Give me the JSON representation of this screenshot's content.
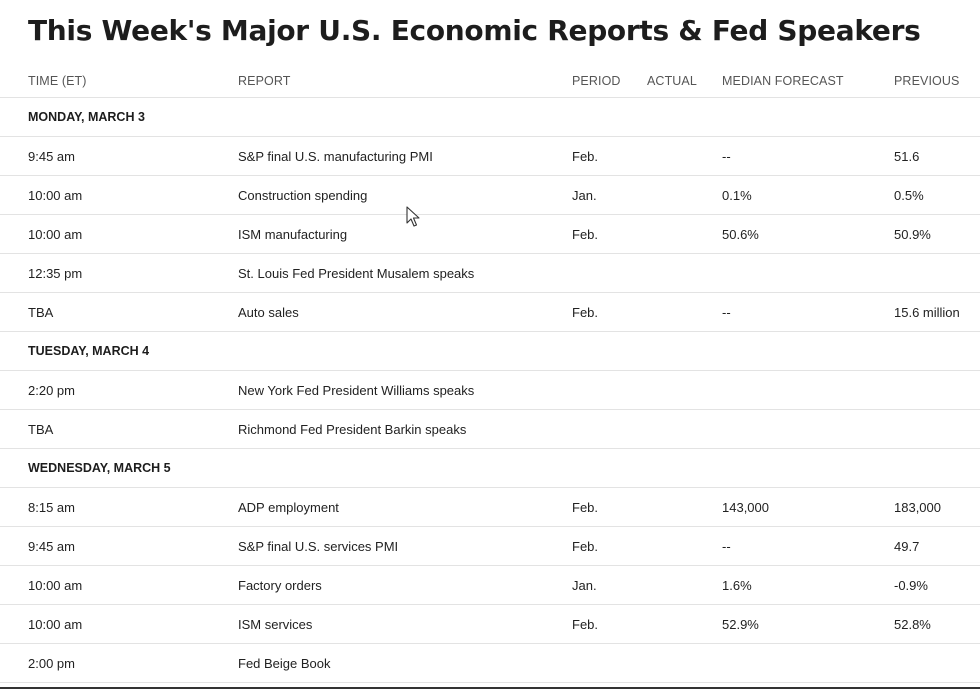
{
  "title": "This Week's Major U.S. Economic Reports & Fed Speakers",
  "columns": {
    "time": "TIME (ET)",
    "report": "REPORT",
    "period": "PERIOD",
    "actual": "ACTUAL",
    "forecast": "MEDIAN FORECAST",
    "previous": "PREVIOUS"
  },
  "days": [
    {
      "label": "MONDAY, MARCH 3",
      "rows": [
        {
          "time": "9:45 am",
          "report": "S&P final U.S. manufacturing PMI",
          "period": "Feb.",
          "actual": "",
          "forecast": "--",
          "previous": "51.6"
        },
        {
          "time": "10:00 am",
          "report": "Construction spending",
          "period": "Jan.",
          "actual": "",
          "forecast": "0.1%",
          "previous": "0.5%"
        },
        {
          "time": "10:00 am",
          "report": "ISM manufacturing",
          "period": "Feb.",
          "actual": "",
          "forecast": "50.6%",
          "previous": "50.9%"
        },
        {
          "time": "12:35 pm",
          "report": "St. Louis Fed President Musalem speaks",
          "period": "",
          "actual": "",
          "forecast": "",
          "previous": ""
        },
        {
          "time": "TBA",
          "report": "Auto sales",
          "period": "Feb.",
          "actual": "",
          "forecast": "--",
          "previous": "15.6 million"
        }
      ]
    },
    {
      "label": "TUESDAY, MARCH 4",
      "rows": [
        {
          "time": "2:20 pm",
          "report": "New York Fed President Williams speaks",
          "period": "",
          "actual": "",
          "forecast": "",
          "previous": ""
        },
        {
          "time": "TBA",
          "report": "Richmond Fed President Barkin speaks",
          "period": "",
          "actual": "",
          "forecast": "",
          "previous": ""
        }
      ]
    },
    {
      "label": "WEDNESDAY, MARCH 5",
      "rows": [
        {
          "time": "8:15 am",
          "report": "ADP employment",
          "period": "Feb.",
          "actual": "",
          "forecast": "143,000",
          "previous": "183,000"
        },
        {
          "time": "9:45 am",
          "report": "S&P final U.S. services PMI",
          "period": "Feb.",
          "actual": "",
          "forecast": "--",
          "previous": "49.7"
        },
        {
          "time": "10:00 am",
          "report": "Factory orders",
          "period": "Jan.",
          "actual": "",
          "forecast": "1.6%",
          "previous": "-0.9%"
        },
        {
          "time": "10:00 am",
          "report": "ISM services",
          "period": "Feb.",
          "actual": "",
          "forecast": "52.9%",
          "previous": "52.8%"
        },
        {
          "time": "2:00 pm",
          "report": "Fed Beige Book",
          "period": "",
          "actual": "",
          "forecast": "",
          "previous": ""
        }
      ]
    }
  ]
}
